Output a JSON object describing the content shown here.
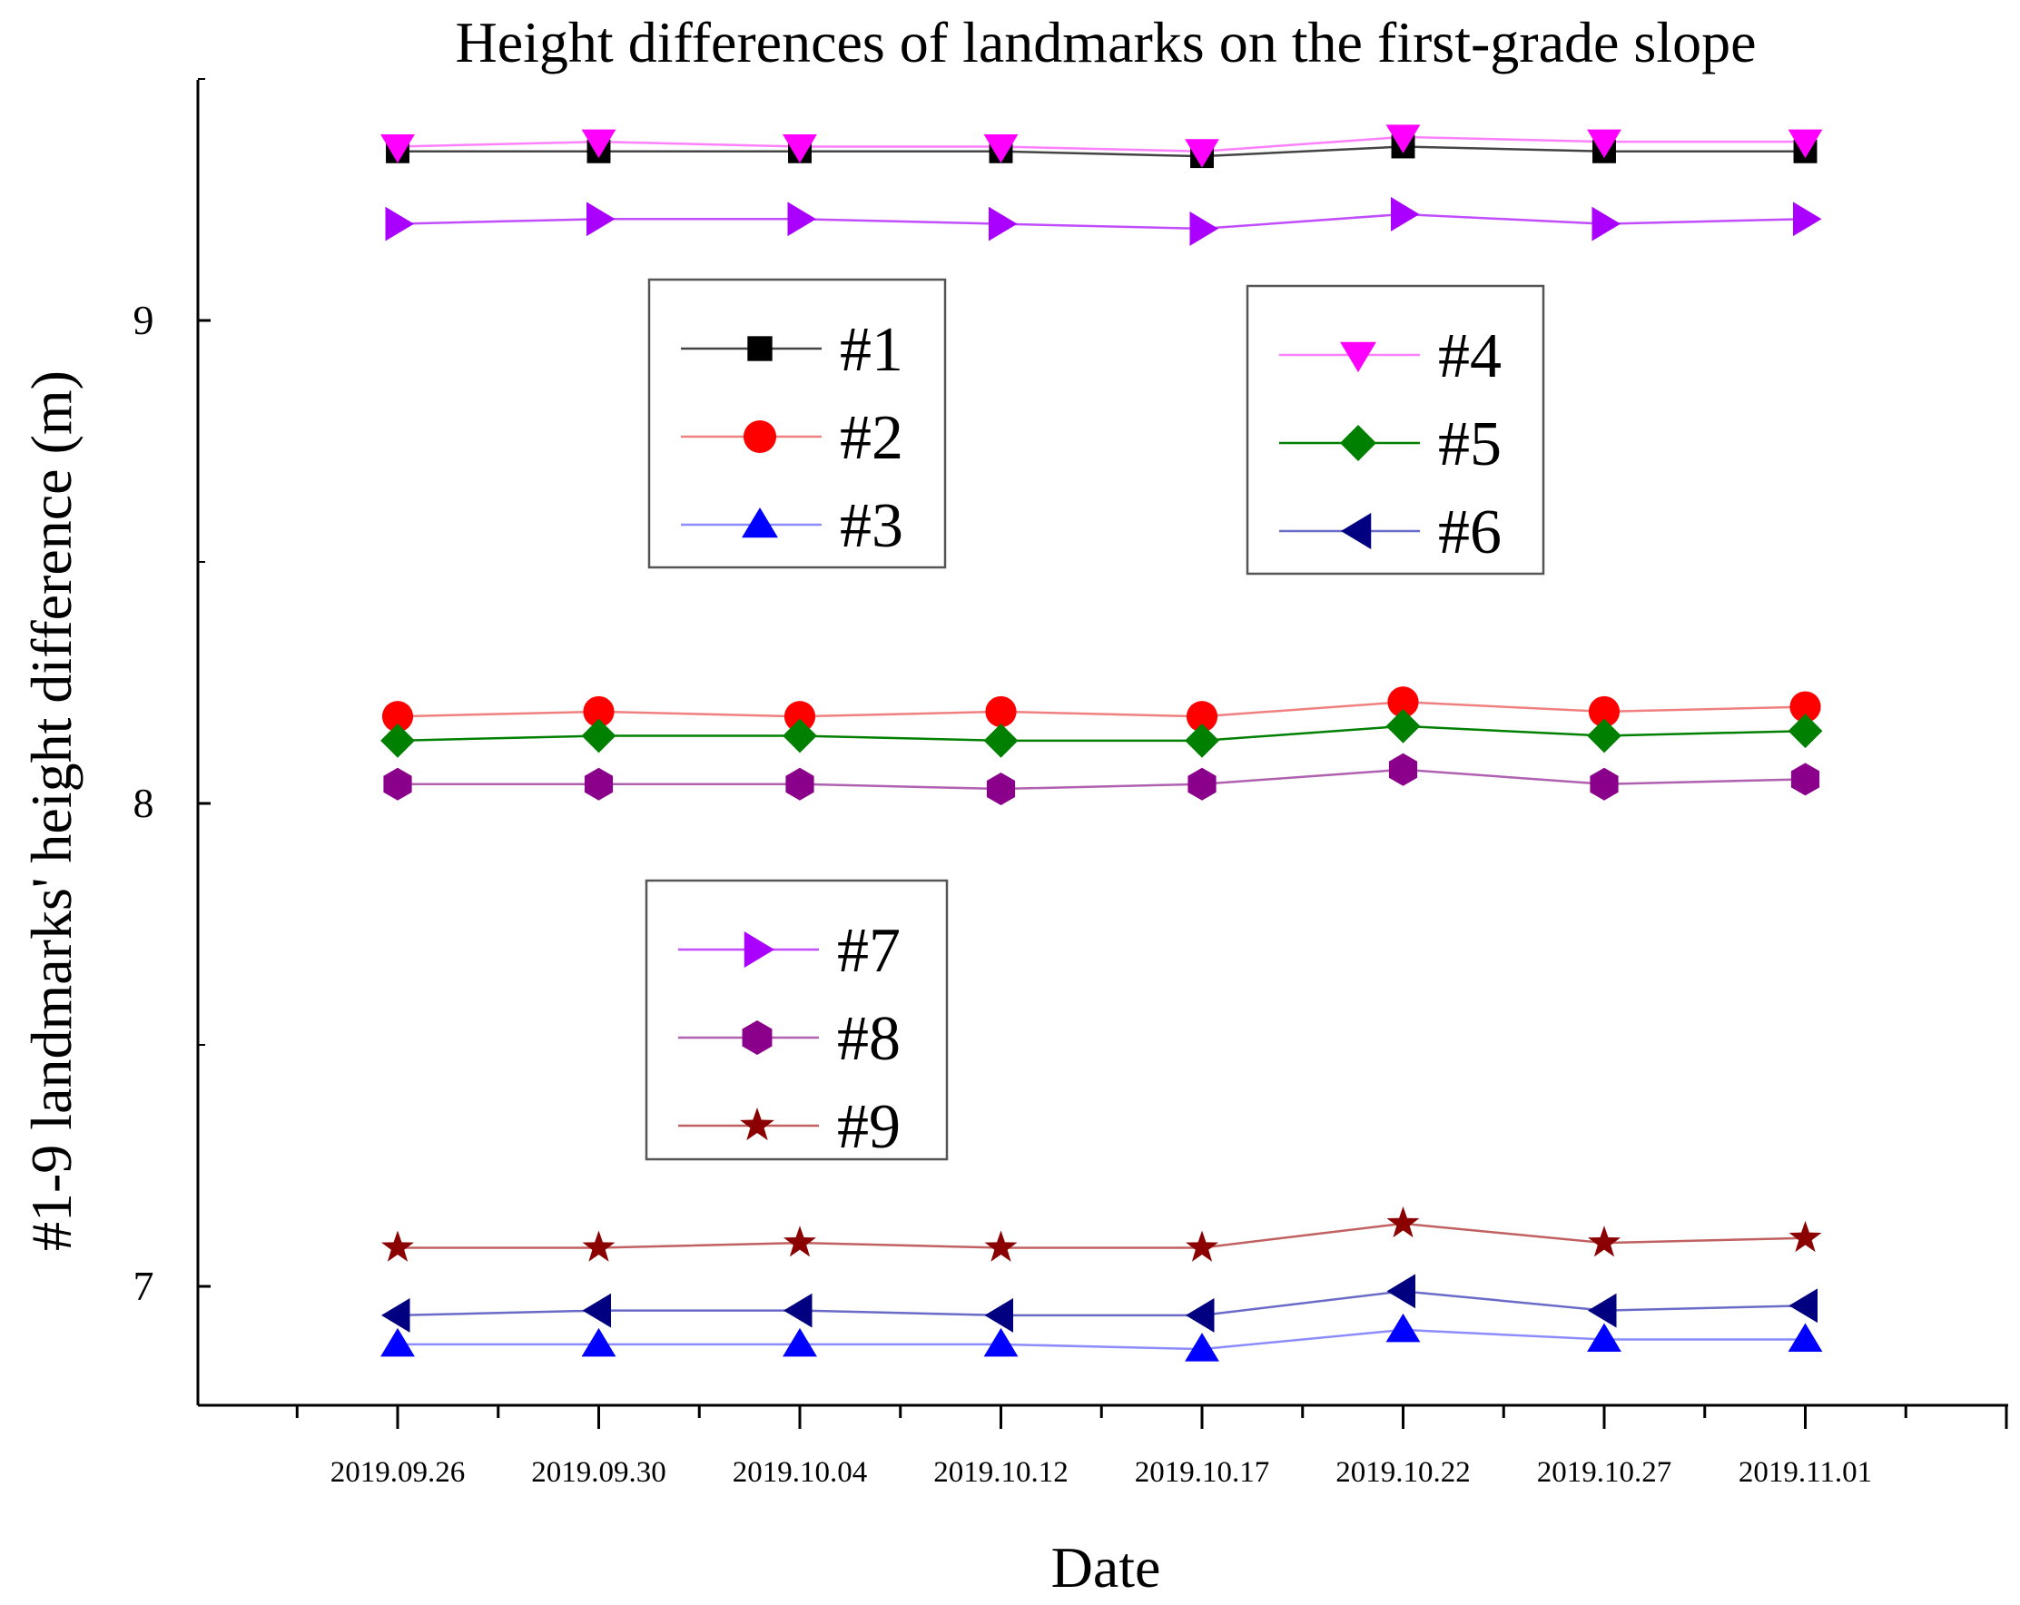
{
  "chart_data": {
    "type": "line",
    "title": "Height differences of landmarks on the first-grade slope",
    "xlabel": "Date",
    "ylabel": "#1-9 landmarks' height difference (m)",
    "categories": [
      "2019.09.26",
      "2019.09.30",
      "2019.10.04",
      "2019.10.12",
      "2019.10.17",
      "2019.10.22",
      "2019.10.27",
      "2019.11.01"
    ],
    "ylim": [
      6.75,
      9.5
    ],
    "yticks": [
      7,
      8,
      9
    ],
    "grid": false,
    "series": [
      {
        "name": "#1",
        "color": "#000000",
        "line_color": "#444444",
        "marker": "square",
        "values": [
          9.35,
          9.35,
          9.35,
          9.35,
          9.34,
          9.36,
          9.35,
          9.35
        ]
      },
      {
        "name": "#2",
        "color": "#ff0000",
        "line_color": "#f08080",
        "marker": "circle",
        "values": [
          8.18,
          8.19,
          8.18,
          8.19,
          8.18,
          8.21,
          8.19,
          8.2
        ]
      },
      {
        "name": "#3",
        "color": "#0000ff",
        "line_color": "#8c8cff",
        "marker": "triangle-up",
        "values": [
          6.88,
          6.88,
          6.88,
          6.88,
          6.87,
          6.91,
          6.89,
          6.89
        ]
      },
      {
        "name": "#4",
        "color": "#ff00ff",
        "line_color": "#ff80ff",
        "marker": "triangle-down",
        "values": [
          9.36,
          9.37,
          9.36,
          9.36,
          9.35,
          9.38,
          9.37,
          9.37
        ]
      },
      {
        "name": "#5",
        "color": "#008000",
        "line_color": "#008000",
        "marker": "diamond",
        "values": [
          8.13,
          8.14,
          8.14,
          8.13,
          8.13,
          8.16,
          8.14,
          8.15
        ]
      },
      {
        "name": "#6",
        "color": "#000080",
        "line_color": "#6a6ac8",
        "marker": "triangle-left",
        "values": [
          6.94,
          6.95,
          6.95,
          6.94,
          6.94,
          6.99,
          6.95,
          6.96
        ]
      },
      {
        "name": "#7",
        "color": "#aa00ff",
        "line_color": "#c04dff",
        "marker": "triangle-right",
        "values": [
          9.2,
          9.21,
          9.21,
          9.2,
          9.19,
          9.22,
          9.2,
          9.21
        ]
      },
      {
        "name": "#8",
        "color": "#8b008b",
        "line_color": "#b060b0",
        "marker": "hexagon",
        "values": [
          8.04,
          8.04,
          8.04,
          8.03,
          8.04,
          8.07,
          8.04,
          8.05
        ]
      },
      {
        "name": "#9",
        "color": "#8b0000",
        "line_color": "#c06060",
        "marker": "star",
        "values": [
          7.08,
          7.08,
          7.09,
          7.08,
          7.08,
          7.13,
          7.09,
          7.1
        ]
      }
    ],
    "legend_groups": [
      {
        "position": "upper-center-left",
        "entries": [
          "#1",
          "#2",
          "#3"
        ]
      },
      {
        "position": "upper-right",
        "entries": [
          "#4",
          "#5",
          "#6"
        ]
      },
      {
        "position": "middle-center-left",
        "entries": [
          "#7",
          "#8",
          "#9"
        ]
      }
    ]
  }
}
